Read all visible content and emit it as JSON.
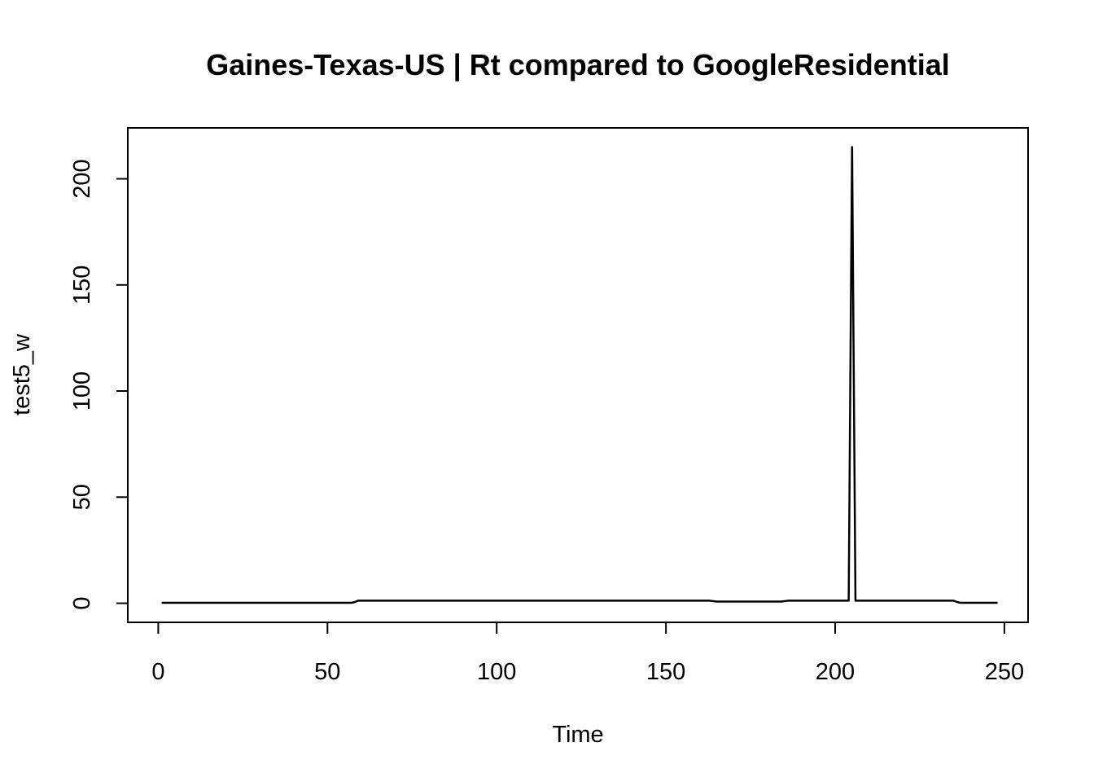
{
  "chart_data": {
    "type": "line",
    "title": "Gaines-Texas-US | Rt compared to GoogleResidential",
    "xlabel": "Time",
    "ylabel": "test5_w",
    "xlim": [
      -9,
      257
    ],
    "ylim": [
      -9,
      224
    ],
    "x_ticks": [
      0,
      50,
      100,
      150,
      200,
      250
    ],
    "y_ticks": [
      0,
      50,
      100,
      150,
      200
    ],
    "grid": false,
    "legend": "none",
    "colors": {
      "line": "#000000",
      "axis": "#000000",
      "background": "#ffffff"
    },
    "series": [
      {
        "x": [
          1,
          10,
          20,
          30,
          40,
          50,
          57,
          58,
          59,
          60,
          70,
          80,
          90,
          100,
          110,
          120,
          130,
          140,
          150,
          160,
          163,
          164,
          165,
          170,
          180,
          184,
          185,
          186,
          190,
          200,
          204,
          205,
          206,
          207,
          210,
          220,
          230,
          235,
          236,
          237,
          240,
          248
        ],
        "y": [
          0.2,
          0.2,
          0.2,
          0.2,
          0.2,
          0.2,
          0.2,
          0.5,
          1.2,
          1.2,
          1.2,
          1.2,
          1.2,
          1.2,
          1.2,
          1.2,
          1.2,
          1.2,
          1.2,
          1.2,
          1.2,
          1.0,
          0.8,
          0.8,
          0.8,
          0.8,
          1.0,
          1.2,
          1.2,
          1.2,
          1.2,
          215,
          1.2,
          1.2,
          1.2,
          1.2,
          1.2,
          1.2,
          0.6,
          0.2,
          0.2,
          0.2
        ]
      }
    ]
  }
}
